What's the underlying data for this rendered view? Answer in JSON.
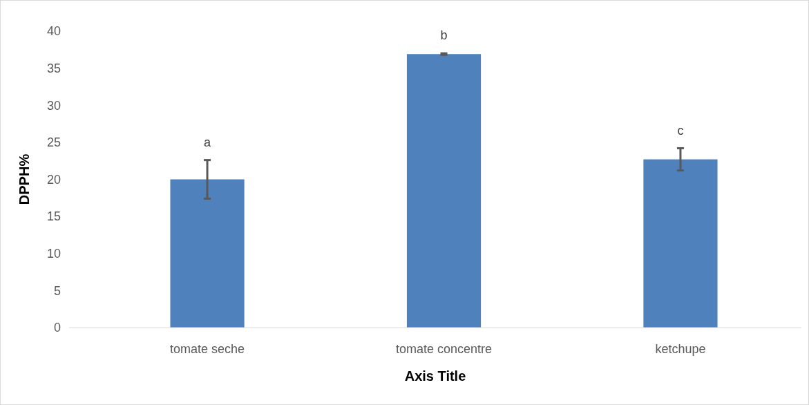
{
  "chart_data": {
    "type": "bar",
    "xlabel": "Axis Title",
    "ylabel": "DPPH%",
    "categories": [
      "tomate seche",
      "tomate concentre",
      "ketchupe"
    ],
    "values": [
      20,
      36.9,
      22.7
    ],
    "errors": [
      2.6,
      0.1,
      1.5
    ],
    "color": "#4f81bd",
    "ylim": [
      0,
      40
    ],
    "yticks": [
      0,
      5,
      10,
      15,
      20,
      25,
      30,
      35,
      40
    ],
    "grid": false,
    "annotations": [
      "a",
      "b",
      "c"
    ]
  }
}
